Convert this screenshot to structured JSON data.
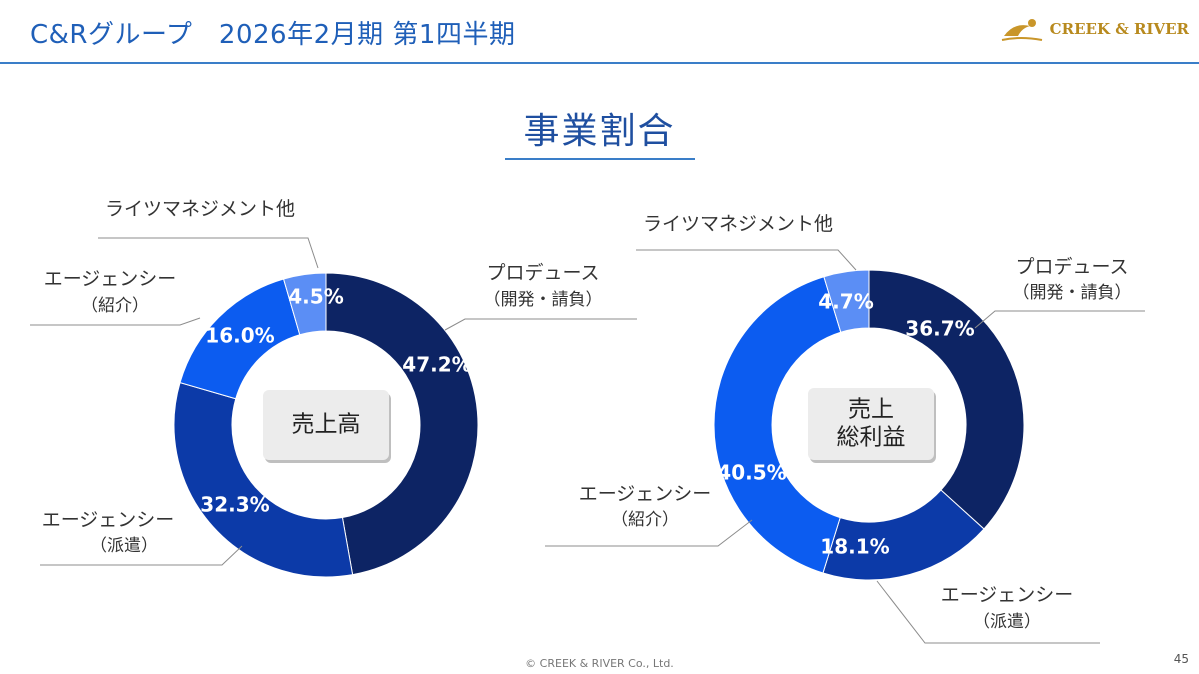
{
  "header": {
    "title": "C&Rグループ　2026年2月期 第1四半期",
    "logo_text": "CREEK & RIVER"
  },
  "section_title": "事業割合",
  "footer": {
    "copyright": "© CREEK & RIVER Co., Ltd.",
    "page_number": "45"
  },
  "colors": {
    "produce": "#0d2464",
    "dispatch": "#0c3aa8",
    "agency": "#0c5cf0",
    "rights": "#5b8ef5"
  },
  "chart_data": [
    {
      "type": "pie",
      "center_label": [
        "売上高"
      ],
      "categories": [
        "プロデュース（開発・請負）",
        "エージェンシー（派遣）",
        "エージェンシー（紹介）",
        "ライツマネジメント他"
      ],
      "values": [
        47.2,
        32.3,
        16.0,
        4.5
      ],
      "value_labels": [
        "47.2%",
        "32.3%",
        "16.0%",
        "4.5%"
      ],
      "category_labels": [
        [
          "プロデュース",
          "（開発・請負）"
        ],
        [
          "エージェンシー",
          "（派遣）"
        ],
        [
          "エージェンシー",
          "（紹介）"
        ],
        [
          "ライツマネジメント他"
        ]
      ]
    },
    {
      "type": "pie",
      "center_label": [
        "売上",
        "総利益"
      ],
      "categories": [
        "プロデュース（開発・請負）",
        "エージェンシー（派遣）",
        "エージェンシー（紹介）",
        "ライツマネジメント他"
      ],
      "values": [
        36.7,
        18.1,
        40.5,
        4.7
      ],
      "value_labels": [
        "36.7%",
        "18.1%",
        "40.5%",
        "4.7%"
      ],
      "category_labels": [
        [
          "プロデュース",
          "（開発・請負）"
        ],
        [
          "エージェンシー",
          "（派遣）"
        ],
        [
          "エージェンシー",
          "（紹介）"
        ],
        [
          "ライツマネジメント他"
        ]
      ]
    }
  ]
}
